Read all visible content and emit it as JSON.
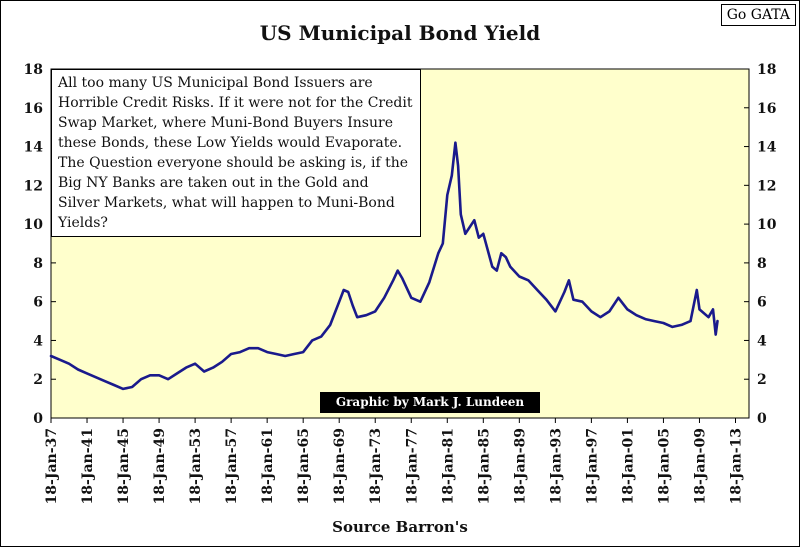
{
  "chart_data": {
    "type": "line",
    "title": "US Municipal Bond Yield",
    "xlabel": "Source Barron's",
    "ylabel": "",
    "badge": "Go GATA",
    "note": "All too many US Municipal Bond Issuers are Horrible Credit Risks.  If it were not for the Credit Swap Market, where Muni-Bond Buyers Insure these Bonds, these Low Yields would Evaporate.  The Question everyone should be asking is, if the Big NY Banks are taken out in the Gold and Silver Markets,  what will happen to Muni-Bond Yields?",
    "credit": "Graphic by Mark J. Lundeen",
    "ylim": [
      0,
      18
    ],
    "y_ticks": [
      "0",
      "2",
      "4",
      "6",
      "8",
      "10",
      "12",
      "14",
      "16",
      "18"
    ],
    "xlim": [
      1937,
      2014.5
    ],
    "x_ticks": [
      "18-Jan-37",
      "18-Jan-41",
      "18-Jan-45",
      "18-Jan-49",
      "18-Jan-53",
      "18-Jan-57",
      "18-Jan-61",
      "18-Jan-65",
      "18-Jan-69",
      "18-Jan-73",
      "18-Jan-77",
      "18-Jan-81",
      "18-Jan-85",
      "18-Jan-89",
      "18-Jan-93",
      "18-Jan-97",
      "18-Jan-01",
      "18-Jan-05",
      "18-Jan-09",
      "18-Jan-13"
    ],
    "grid": false,
    "colors": {
      "plot_background": "#ffffcc",
      "line": "#1a1a8c"
    },
    "series": [
      {
        "x": [
          1937.0,
          1938.0,
          1939.0,
          1940.0,
          1941.0,
          1942.0,
          1943.0,
          1944.0,
          1945.0,
          1946.0,
          1947.0,
          1948.0,
          1949.0,
          1950.0,
          1951.0,
          1952.0,
          1953.0,
          1954.0,
          1955.0,
          1956.0,
          1957.0,
          1958.0,
          1959.0,
          1960.0,
          1961.0,
          1962.0,
          1963.0,
          1964.0,
          1965.0,
          1966.0,
          1967.0,
          1968.0,
          1969.0,
          1969.5,
          1970.0,
          1970.5,
          1971.0,
          1972.0,
          1973.0,
          1974.0,
          1975.0,
          1975.5,
          1976.0,
          1977.0,
          1978.0,
          1979.0,
          1980.0,
          1980.5,
          1981.0,
          1981.5,
          1981.9,
          1982.2,
          1982.5,
          1983.0,
          1984.0,
          1984.5,
          1985.0,
          1986.0,
          1986.5,
          1987.0,
          1987.5,
          1988.0,
          1989.0,
          1990.0,
          1991.0,
          1992.0,
          1993.0,
          1994.0,
          1994.5,
          1995.0,
          1996.0,
          1997.0,
          1998.0,
          1999.0,
          2000.0,
          2001.0,
          2002.0,
          2003.0,
          2004.0,
          2005.0,
          2006.0,
          2007.0,
          2008.0,
          2008.7,
          2009.0,
          2010.0,
          2010.5,
          2010.8,
          2011.0
        ],
        "values": [
          3.2,
          3.0,
          2.8,
          2.5,
          2.3,
          2.1,
          1.9,
          1.7,
          1.5,
          1.6,
          2.0,
          2.2,
          2.2,
          2.0,
          2.3,
          2.6,
          2.8,
          2.4,
          2.6,
          2.9,
          3.3,
          3.4,
          3.6,
          3.6,
          3.4,
          3.3,
          3.2,
          3.3,
          3.4,
          4.0,
          4.2,
          4.8,
          6.0,
          6.6,
          6.5,
          5.8,
          5.2,
          5.3,
          5.5,
          6.2,
          7.1,
          7.6,
          7.2,
          6.2,
          6.0,
          7.0,
          8.5,
          9.0,
          11.5,
          12.5,
          14.2,
          13.0,
          10.5,
          9.5,
          10.2,
          9.3,
          9.5,
          7.8,
          7.6,
          8.5,
          8.3,
          7.8,
          7.3,
          7.1,
          6.6,
          6.1,
          5.5,
          6.5,
          7.1,
          6.1,
          6.0,
          5.5,
          5.2,
          5.5,
          6.2,
          5.6,
          5.3,
          5.1,
          5.0,
          4.9,
          4.7,
          4.8,
          5.0,
          6.6,
          5.6,
          5.2,
          5.6,
          4.3,
          5.0
        ]
      }
    ]
  }
}
